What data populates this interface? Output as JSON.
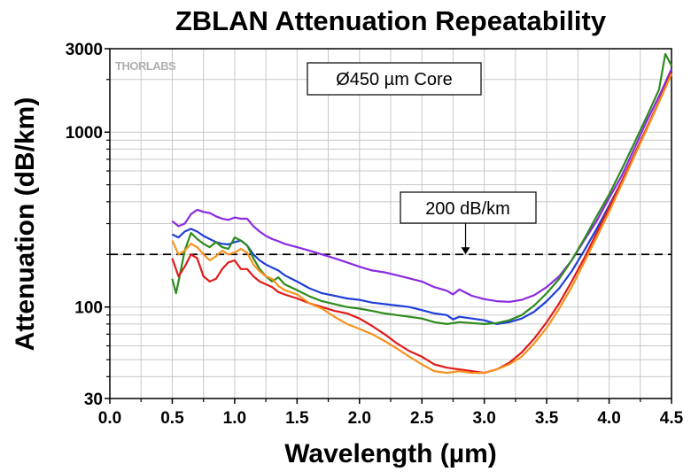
{
  "chart_data": {
    "type": "line",
    "title": "ZBLAN Attenuation Repeatability",
    "xlabel": "Wavelength (µm)",
    "ylabel": "Attenuation (dB/km)",
    "xlim": [
      0.0,
      4.5
    ],
    "ylim": [
      30,
      3000
    ],
    "yscale": "log",
    "grid": true,
    "x_ticks": [
      "0.0",
      "0.5",
      "1.0",
      "1.5",
      "2.0",
      "2.5",
      "3.0",
      "3.5",
      "4.0",
      "4.5"
    ],
    "y_ticks": [
      {
        "value": 30,
        "label": "30"
      },
      {
        "value": 100,
        "label": "100"
      },
      {
        "value": 1000,
        "label": "1000"
      },
      {
        "value": 3000,
        "label": "3000"
      }
    ],
    "logo": "THORLABS",
    "annotations": [
      {
        "text": "Ø450 µm Core"
      },
      {
        "text": "200 dB/km",
        "arrow_to": [
          2.85,
          200
        ]
      }
    ],
    "reference_line": {
      "y": 200,
      "style": "dashed",
      "color": "#000000"
    },
    "series": [
      {
        "color": "#8b2be2",
        "points": [
          [
            0.5,
            310
          ],
          [
            0.55,
            290
          ],
          [
            0.6,
            300
          ],
          [
            0.65,
            340
          ],
          [
            0.7,
            360
          ],
          [
            0.75,
            350
          ],
          [
            0.8,
            345
          ],
          [
            0.85,
            330
          ],
          [
            0.9,
            320
          ],
          [
            0.95,
            315
          ],
          [
            1.0,
            325
          ],
          [
            1.05,
            320
          ],
          [
            1.1,
            320
          ],
          [
            1.15,
            290
          ],
          [
            1.2,
            270
          ],
          [
            1.25,
            255
          ],
          [
            1.3,
            245
          ],
          [
            1.35,
            238
          ],
          [
            1.4,
            230
          ],
          [
            1.5,
            220
          ],
          [
            1.6,
            210
          ],
          [
            1.7,
            200
          ],
          [
            1.8,
            190
          ],
          [
            1.9,
            180
          ],
          [
            2.0,
            170
          ],
          [
            2.1,
            162
          ],
          [
            2.2,
            158
          ],
          [
            2.3,
            152
          ],
          [
            2.4,
            146
          ],
          [
            2.5,
            140
          ],
          [
            2.6,
            130
          ],
          [
            2.7,
            124
          ],
          [
            2.75,
            118
          ],
          [
            2.8,
            126
          ],
          [
            2.9,
            116
          ],
          [
            3.0,
            111
          ],
          [
            3.1,
            108
          ],
          [
            3.2,
            107
          ],
          [
            3.3,
            110
          ],
          [
            3.4,
            117
          ],
          [
            3.5,
            130
          ],
          [
            3.6,
            150
          ],
          [
            3.7,
            185
          ],
          [
            3.8,
            240
          ],
          [
            3.9,
            310
          ],
          [
            4.0,
            420
          ],
          [
            4.1,
            560
          ],
          [
            4.2,
            800
          ],
          [
            4.3,
            1150
          ],
          [
            4.4,
            1600
          ],
          [
            4.5,
            2300
          ]
        ]
      },
      {
        "color": "#1f3fd6",
        "points": [
          [
            0.5,
            260
          ],
          [
            0.55,
            250
          ],
          [
            0.6,
            270
          ],
          [
            0.65,
            280
          ],
          [
            0.7,
            270
          ],
          [
            0.75,
            255
          ],
          [
            0.8,
            245
          ],
          [
            0.85,
            235
          ],
          [
            0.9,
            230
          ],
          [
            0.95,
            228
          ],
          [
            1.0,
            235
          ],
          [
            1.05,
            240
          ],
          [
            1.1,
            225
          ],
          [
            1.15,
            200
          ],
          [
            1.2,
            185
          ],
          [
            1.25,
            175
          ],
          [
            1.3,
            168
          ],
          [
            1.35,
            162
          ],
          [
            1.4,
            152
          ],
          [
            1.5,
            140
          ],
          [
            1.6,
            128
          ],
          [
            1.7,
            120
          ],
          [
            1.8,
            116
          ],
          [
            1.9,
            112
          ],
          [
            2.0,
            110
          ],
          [
            2.1,
            106
          ],
          [
            2.2,
            104
          ],
          [
            2.3,
            102
          ],
          [
            2.4,
            100
          ],
          [
            2.5,
            96
          ],
          [
            2.6,
            92
          ],
          [
            2.7,
            90
          ],
          [
            2.75,
            85
          ],
          [
            2.8,
            88
          ],
          [
            2.9,
            86
          ],
          [
            3.0,
            84
          ],
          [
            3.1,
            80
          ],
          [
            3.2,
            82
          ],
          [
            3.3,
            86
          ],
          [
            3.4,
            94
          ],
          [
            3.5,
            108
          ],
          [
            3.6,
            128
          ],
          [
            3.7,
            160
          ],
          [
            3.8,
            210
          ],
          [
            3.9,
            280
          ],
          [
            4.0,
            380
          ],
          [
            4.1,
            520
          ],
          [
            4.2,
            740
          ],
          [
            4.3,
            1050
          ],
          [
            4.4,
            1500
          ],
          [
            4.5,
            2200
          ]
        ]
      },
      {
        "color": "#2e8b1e",
        "points": [
          [
            0.5,
            145
          ],
          [
            0.53,
            120
          ],
          [
            0.55,
            140
          ],
          [
            0.6,
            210
          ],
          [
            0.65,
            265
          ],
          [
            0.7,
            245
          ],
          [
            0.75,
            230
          ],
          [
            0.8,
            220
          ],
          [
            0.85,
            235
          ],
          [
            0.9,
            220
          ],
          [
            0.95,
            215
          ],
          [
            1.0,
            250
          ],
          [
            1.05,
            240
          ],
          [
            1.1,
            225
          ],
          [
            1.15,
            190
          ],
          [
            1.2,
            165
          ],
          [
            1.25,
            150
          ],
          [
            1.3,
            140
          ],
          [
            1.35,
            148
          ],
          [
            1.4,
            135
          ],
          [
            1.5,
            125
          ],
          [
            1.6,
            115
          ],
          [
            1.7,
            108
          ],
          [
            1.8,
            104
          ],
          [
            1.9,
            100
          ],
          [
            2.0,
            98
          ],
          [
            2.1,
            95
          ],
          [
            2.2,
            92
          ],
          [
            2.3,
            90
          ],
          [
            2.4,
            88
          ],
          [
            2.5,
            86
          ],
          [
            2.6,
            82
          ],
          [
            2.7,
            80
          ],
          [
            2.8,
            82
          ],
          [
            2.9,
            81
          ],
          [
            3.0,
            80
          ],
          [
            3.1,
            81
          ],
          [
            3.2,
            84
          ],
          [
            3.3,
            90
          ],
          [
            3.4,
            102
          ],
          [
            3.5,
            120
          ],
          [
            3.6,
            145
          ],
          [
            3.7,
            185
          ],
          [
            3.8,
            245
          ],
          [
            3.9,
            330
          ],
          [
            4.0,
            440
          ],
          [
            4.1,
            610
          ],
          [
            4.2,
            860
          ],
          [
            4.3,
            1220
          ],
          [
            4.4,
            1750
          ],
          [
            4.45,
            2800
          ],
          [
            4.5,
            2400
          ]
        ]
      },
      {
        "color": "#e01b1b",
        "points": [
          [
            0.5,
            190
          ],
          [
            0.55,
            150
          ],
          [
            0.6,
            170
          ],
          [
            0.65,
            200
          ],
          [
            0.7,
            190
          ],
          [
            0.75,
            150
          ],
          [
            0.8,
            140
          ],
          [
            0.85,
            145
          ],
          [
            0.9,
            165
          ],
          [
            0.95,
            180
          ],
          [
            1.0,
            185
          ],
          [
            1.05,
            165
          ],
          [
            1.1,
            165
          ],
          [
            1.15,
            150
          ],
          [
            1.2,
            140
          ],
          [
            1.25,
            135
          ],
          [
            1.3,
            130
          ],
          [
            1.35,
            122
          ],
          [
            1.4,
            118
          ],
          [
            1.5,
            112
          ],
          [
            1.6,
            105
          ],
          [
            1.7,
            100
          ],
          [
            1.8,
            95
          ],
          [
            1.9,
            92
          ],
          [
            2.0,
            86
          ],
          [
            2.1,
            78
          ],
          [
            2.2,
            70
          ],
          [
            2.3,
            62
          ],
          [
            2.4,
            56
          ],
          [
            2.5,
            52
          ],
          [
            2.6,
            47
          ],
          [
            2.7,
            45
          ],
          [
            2.8,
            44
          ],
          [
            2.9,
            43
          ],
          [
            3.0,
            42
          ],
          [
            3.1,
            44
          ],
          [
            3.2,
            48
          ],
          [
            3.3,
            55
          ],
          [
            3.4,
            66
          ],
          [
            3.5,
            82
          ],
          [
            3.6,
            105
          ],
          [
            3.7,
            140
          ],
          [
            3.8,
            190
          ],
          [
            3.9,
            265
          ],
          [
            4.0,
            370
          ],
          [
            4.1,
            520
          ],
          [
            4.2,
            740
          ],
          [
            4.3,
            1050
          ],
          [
            4.4,
            1500
          ],
          [
            4.5,
            2200
          ]
        ]
      },
      {
        "color": "#f7931e",
        "points": [
          [
            0.5,
            240
          ],
          [
            0.55,
            200
          ],
          [
            0.6,
            210
          ],
          [
            0.65,
            230
          ],
          [
            0.7,
            220
          ],
          [
            0.75,
            200
          ],
          [
            0.8,
            185
          ],
          [
            0.85,
            195
          ],
          [
            0.9,
            210
          ],
          [
            0.95,
            200
          ],
          [
            1.0,
            205
          ],
          [
            1.05,
            215
          ],
          [
            1.1,
            205
          ],
          [
            1.15,
            175
          ],
          [
            1.2,
            160
          ],
          [
            1.25,
            150
          ],
          [
            1.3,
            145
          ],
          [
            1.35,
            132
          ],
          [
            1.4,
            125
          ],
          [
            1.5,
            118
          ],
          [
            1.6,
            105
          ],
          [
            1.7,
            98
          ],
          [
            1.8,
            88
          ],
          [
            1.9,
            80
          ],
          [
            2.0,
            75
          ],
          [
            2.1,
            70
          ],
          [
            2.2,
            64
          ],
          [
            2.3,
            58
          ],
          [
            2.4,
            52
          ],
          [
            2.5,
            47
          ],
          [
            2.6,
            43
          ],
          [
            2.7,
            42
          ],
          [
            2.8,
            43
          ],
          [
            2.9,
            42
          ],
          [
            3.0,
            42
          ],
          [
            3.1,
            44
          ],
          [
            3.2,
            47
          ],
          [
            3.3,
            52
          ],
          [
            3.4,
            62
          ],
          [
            3.5,
            76
          ],
          [
            3.6,
            98
          ],
          [
            3.7,
            130
          ],
          [
            3.8,
            180
          ],
          [
            3.9,
            250
          ],
          [
            4.0,
            350
          ],
          [
            4.1,
            500
          ],
          [
            4.2,
            720
          ],
          [
            4.3,
            1030
          ],
          [
            4.4,
            1480
          ],
          [
            4.5,
            2150
          ]
        ]
      }
    ]
  }
}
